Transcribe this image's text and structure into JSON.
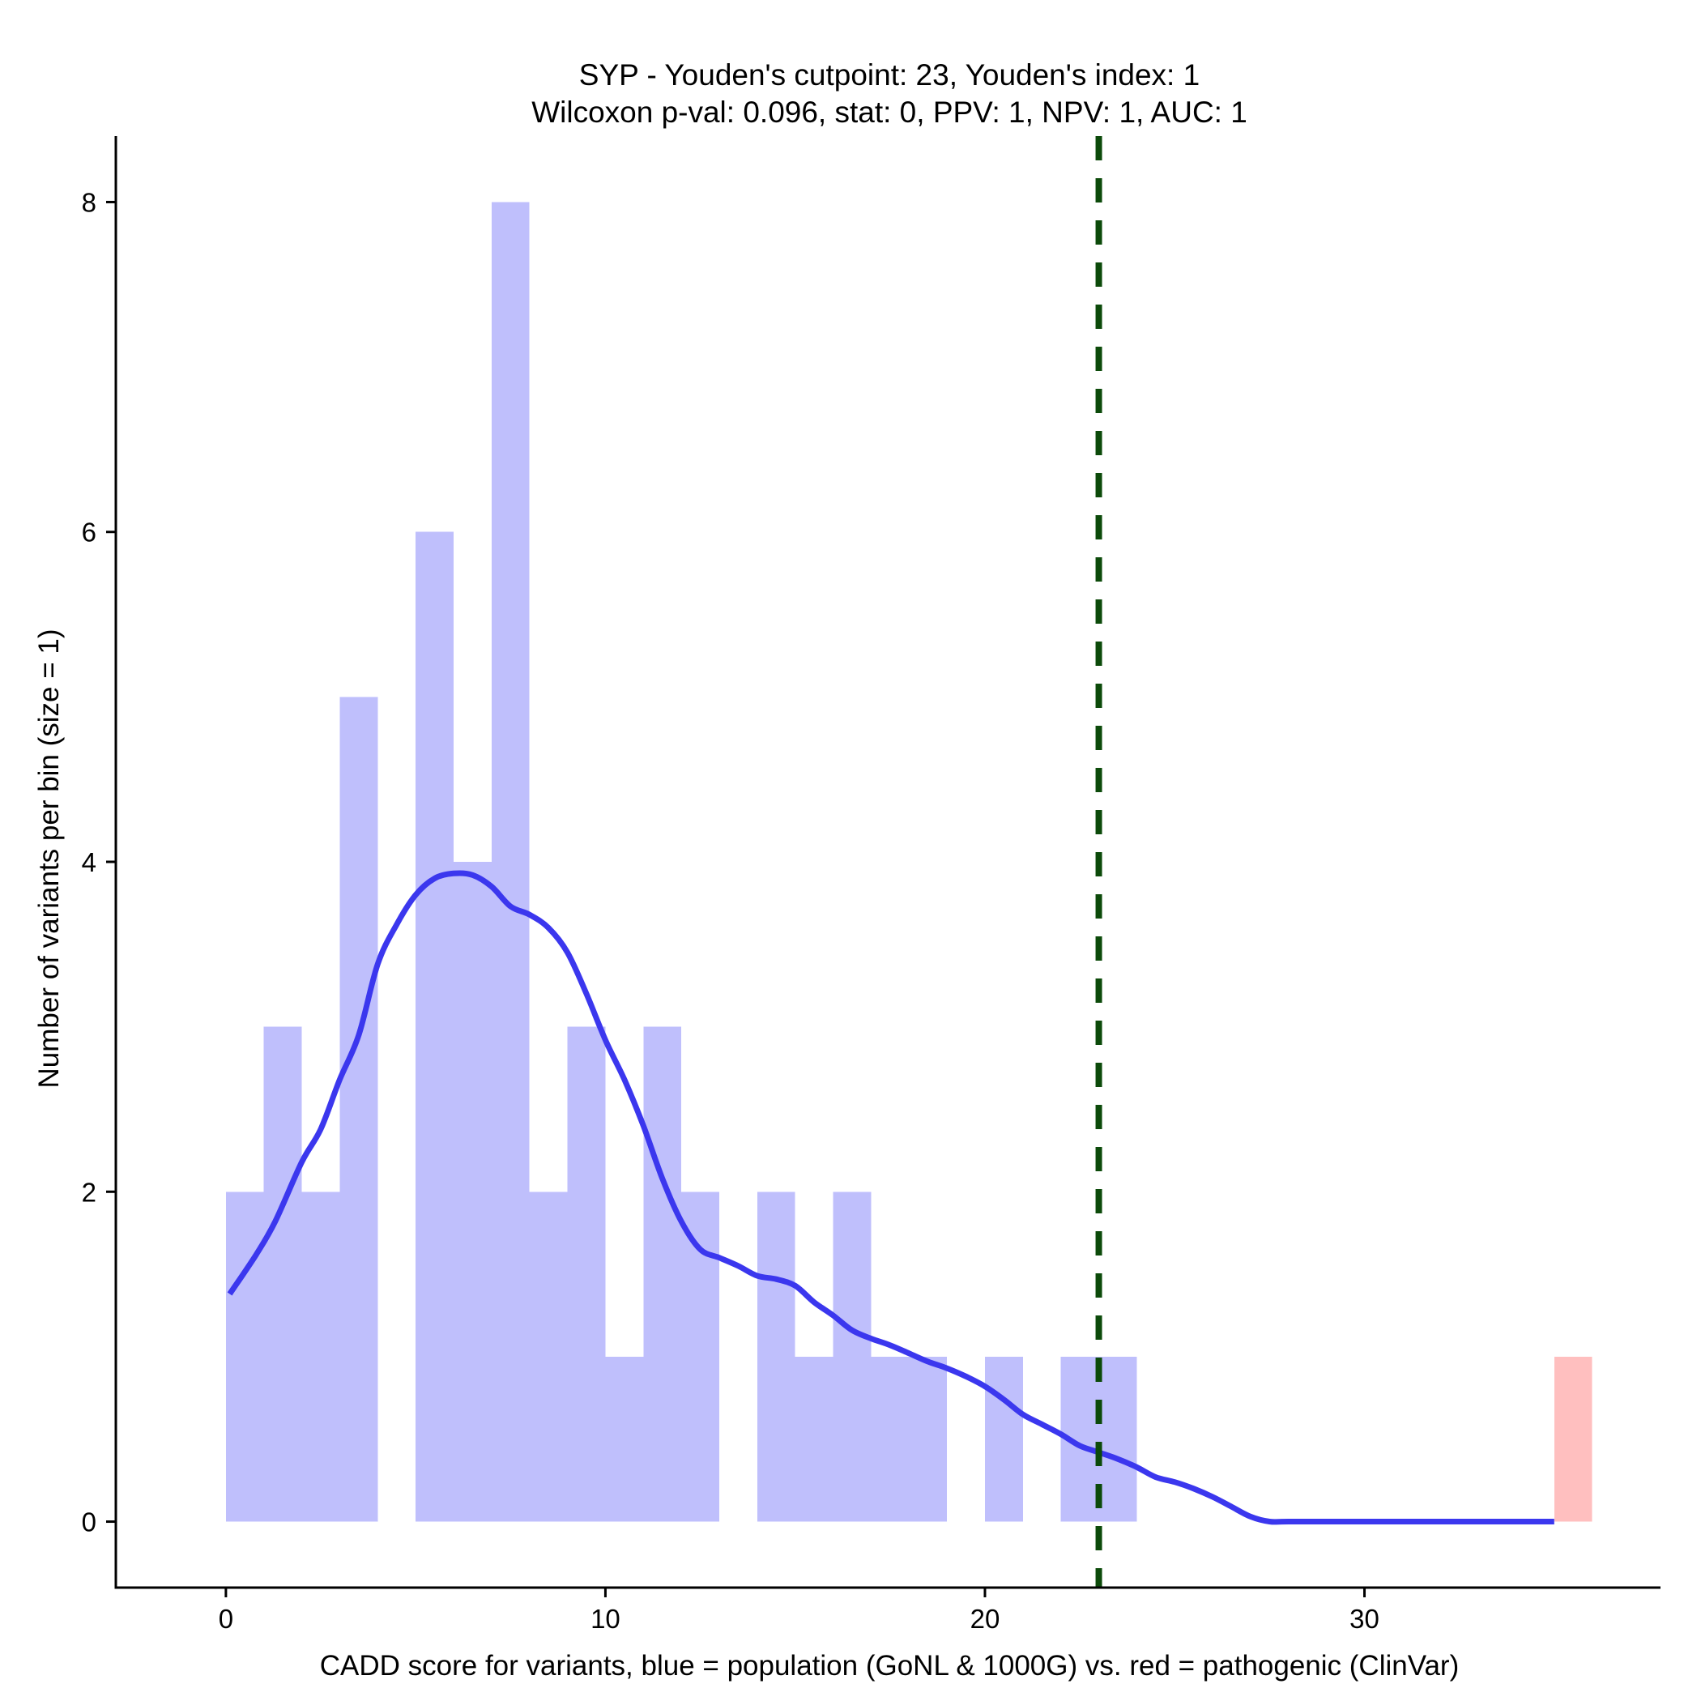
{
  "chart_data": {
    "type": "bar",
    "title": "SYP - Youden's cutpoint: 23, Youden's index: 1",
    "subtitle": "Wilcoxon p-val: 0.096, stat: 0, PPV: 1, NPV: 1, AUC: 1",
    "xlabel": "CADD score for variants, blue = population (GoNL & 1000G) vs. red = pathogenic (ClinVar)",
    "ylabel": "Number of variants per bin (size = 1)",
    "xlim": [
      -2.9,
      37.8
    ],
    "ylim": [
      -0.4,
      8.4
    ],
    "x_ticks": [
      0,
      10,
      20,
      30
    ],
    "y_ticks": [
      0,
      2,
      4,
      6,
      8
    ],
    "bin_size": 1,
    "grid": false,
    "colors": {
      "population": "#bfbffc",
      "pathogenic": "#ffbfbf",
      "density": "#3b37ee",
      "cutpoint": "#0c4a0a",
      "axis": "#000000"
    },
    "series": [
      {
        "name": "population",
        "bins": [
          {
            "x": 0,
            "count": 2
          },
          {
            "x": 1,
            "count": 3
          },
          {
            "x": 2,
            "count": 2
          },
          {
            "x": 3,
            "count": 5
          },
          {
            "x": 5,
            "count": 6
          },
          {
            "x": 6,
            "count": 4
          },
          {
            "x": 7,
            "count": 8
          },
          {
            "x": 8,
            "count": 2
          },
          {
            "x": 9,
            "count": 3
          },
          {
            "x": 10,
            "count": 1
          },
          {
            "x": 11,
            "count": 3
          },
          {
            "x": 12,
            "count": 2
          },
          {
            "x": 14,
            "count": 2
          },
          {
            "x": 15,
            "count": 1
          },
          {
            "x": 16,
            "count": 2
          },
          {
            "x": 17,
            "count": 1
          },
          {
            "x": 18,
            "count": 1
          },
          {
            "x": 20,
            "count": 1
          },
          {
            "x": 22,
            "count": 1
          },
          {
            "x": 23,
            "count": 1
          }
        ]
      },
      {
        "name": "pathogenic",
        "bins": [
          {
            "x": 35,
            "count": 1
          }
        ]
      }
    ],
    "density": {
      "name": "population density",
      "points": [
        [
          0.1,
          1.38
        ],
        [
          0.8,
          1.62
        ],
        [
          1.3,
          1.82
        ],
        [
          2.0,
          2.18
        ],
        [
          2.5,
          2.38
        ],
        [
          3.0,
          2.68
        ],
        [
          3.5,
          2.95
        ],
        [
          4.0,
          3.38
        ],
        [
          4.5,
          3.62
        ],
        [
          5.0,
          3.8
        ],
        [
          5.5,
          3.9
        ],
        [
          6.0,
          3.93
        ],
        [
          6.5,
          3.92
        ],
        [
          7.0,
          3.85
        ],
        [
          7.5,
          3.73
        ],
        [
          8.0,
          3.68
        ],
        [
          8.5,
          3.6
        ],
        [
          9.0,
          3.45
        ],
        [
          9.5,
          3.2
        ],
        [
          10.0,
          2.92
        ],
        [
          10.5,
          2.68
        ],
        [
          11.0,
          2.4
        ],
        [
          11.5,
          2.08
        ],
        [
          12.0,
          1.82
        ],
        [
          12.5,
          1.65
        ],
        [
          13.0,
          1.6
        ],
        [
          13.5,
          1.55
        ],
        [
          14.0,
          1.49
        ],
        [
          14.5,
          1.47
        ],
        [
          15.0,
          1.43
        ],
        [
          15.5,
          1.33
        ],
        [
          16.0,
          1.25
        ],
        [
          16.5,
          1.16
        ],
        [
          17.0,
          1.11
        ],
        [
          17.5,
          1.07
        ],
        [
          18.0,
          1.02
        ],
        [
          18.5,
          0.97
        ],
        [
          19.0,
          0.93
        ],
        [
          19.5,
          0.88
        ],
        [
          20.0,
          0.82
        ],
        [
          20.5,
          0.74
        ],
        [
          21.0,
          0.65
        ],
        [
          21.5,
          0.59
        ],
        [
          22.0,
          0.53
        ],
        [
          22.5,
          0.46
        ],
        [
          23.0,
          0.42
        ],
        [
          23.5,
          0.38
        ],
        [
          24.0,
          0.33
        ],
        [
          24.5,
          0.27
        ],
        [
          25.0,
          0.24
        ],
        [
          25.5,
          0.2
        ],
        [
          26.0,
          0.15
        ],
        [
          26.5,
          0.09
        ],
        [
          27.0,
          0.03
        ],
        [
          27.5,
          0.0
        ],
        [
          28.0,
          0.0
        ],
        [
          30.0,
          0.0
        ],
        [
          32.0,
          0.0
        ],
        [
          34.0,
          0.0
        ],
        [
          35.0,
          0.0
        ]
      ]
    },
    "cutpoint": 23
  }
}
